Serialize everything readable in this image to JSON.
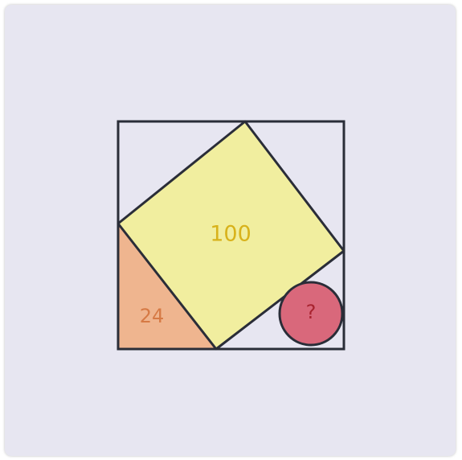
{
  "diagram": {
    "labels": {
      "square_area": "100",
      "triangle_area": "24",
      "circle_unknown": "?"
    },
    "colors": {
      "paper": "#e7e6f1",
      "square_fill": "#f1ee9f",
      "triangle_fill": "#efb58f",
      "circle_fill": "#d9687b",
      "outline": "#2a2d38",
      "square_label": "#d8b21b",
      "triangle_label": "#d67a45",
      "circle_label": "#a8232f"
    }
  }
}
